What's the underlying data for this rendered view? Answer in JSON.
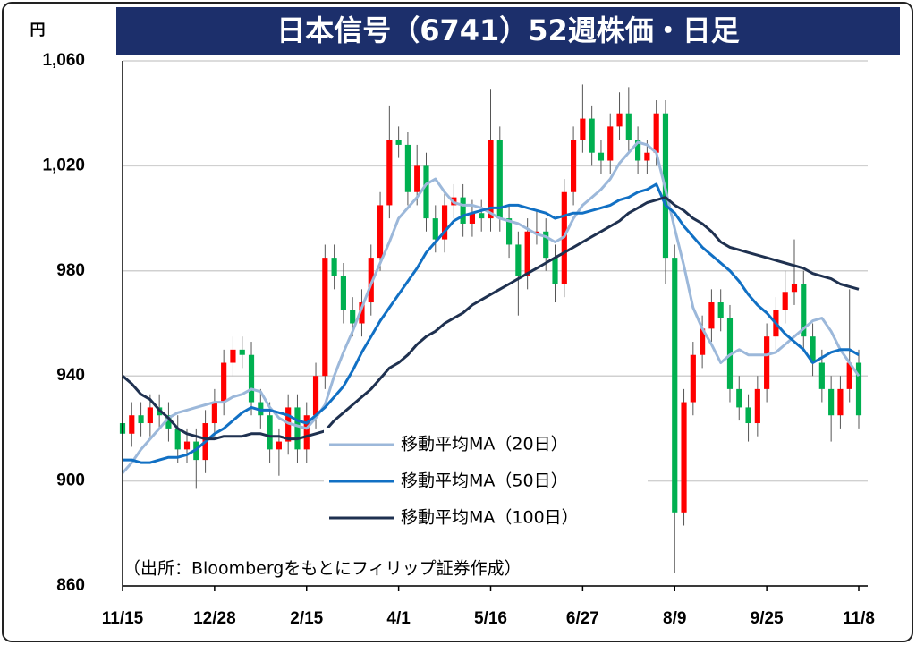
{
  "chart_data": {
    "type": "candlestick",
    "title": "日本信号（6741）52週株価・日足",
    "y_unit": "円",
    "annotation": "（出所：Bloombergをもとにフィリップ証券作成）",
    "categories": [
      "11/15",
      null,
      null,
      null,
      null,
      null,
      null,
      null,
      null,
      null,
      "12/28",
      null,
      null,
      null,
      null,
      null,
      null,
      null,
      null,
      null,
      "2/15",
      null,
      null,
      null,
      null,
      null,
      null,
      null,
      null,
      null,
      "4/1",
      null,
      null,
      null,
      null,
      null,
      null,
      null,
      null,
      null,
      "5/16",
      null,
      null,
      null,
      null,
      null,
      null,
      null,
      null,
      null,
      "6/27",
      null,
      null,
      null,
      null,
      null,
      null,
      null,
      null,
      null,
      "8/9",
      null,
      null,
      null,
      null,
      null,
      null,
      null,
      null,
      null,
      "9/25",
      null,
      null,
      null,
      null,
      null,
      null,
      null,
      null,
      null,
      "11/8"
    ],
    "open": [
      922,
      918,
      925,
      922,
      928,
      925,
      920,
      912,
      915,
      908,
      922,
      930,
      945,
      950,
      948,
      930,
      925,
      912,
      915,
      928,
      912,
      925,
      940,
      985,
      978,
      965,
      960,
      968,
      985,
      1005,
      1030,
      1028,
      1010,
      1020,
      1000,
      992,
      1005,
      1008,
      998,
      1002,
      1000,
      1030,
      1000,
      990,
      978,
      995,
      995,
      985,
      975,
      1010,
      1030,
      1038,
      1025,
      1022,
      1035,
      1040,
      1030,
      1022,
      1025,
      1040,
      985,
      888,
      930,
      948,
      958,
      968,
      962,
      935,
      928,
      922,
      935,
      955,
      965,
      972,
      975,
      955,
      945,
      935,
      925,
      935,
      945
    ],
    "high": [
      927,
      930,
      930,
      933,
      933,
      930,
      925,
      920,
      920,
      927,
      935,
      950,
      955,
      955,
      953,
      935,
      930,
      920,
      933,
      933,
      930,
      945,
      990,
      990,
      983,
      970,
      973,
      990,
      1010,
      1043,
      1035,
      1033,
      1028,
      1025,
      1005,
      1010,
      1013,
      1013,
      1007,
      1007,
      1049,
      1035,
      1005,
      995,
      1000,
      1003,
      1000,
      990,
      1015,
      1035,
      1051,
      1043,
      1030,
      1040,
      1048,
      1050,
      1035,
      1030,
      1045,
      1045,
      990,
      935,
      953,
      963,
      973,
      973,
      967,
      940,
      933,
      940,
      960,
      970,
      980,
      992,
      980,
      960,
      950,
      940,
      940,
      973,
      950
    ],
    "low": [
      913,
      913,
      917,
      917,
      920,
      915,
      907,
      907,
      897,
      903,
      917,
      925,
      940,
      943,
      925,
      920,
      907,
      902,
      910,
      907,
      907,
      920,
      935,
      973,
      960,
      955,
      955,
      963,
      980,
      1000,
      1023,
      1005,
      1005,
      995,
      987,
      987,
      1000,
      993,
      993,
      995,
      995,
      995,
      985,
      963,
      973,
      990,
      980,
      968,
      970,
      1005,
      1025,
      1020,
      1017,
      1017,
      1030,
      1025,
      1017,
      1017,
      1020,
      975,
      865,
      883,
      925,
      943,
      953,
      957,
      930,
      923,
      915,
      917,
      930,
      950,
      960,
      967,
      950,
      940,
      930,
      915,
      920,
      930,
      920
    ],
    "close": [
      918,
      925,
      922,
      928,
      925,
      920,
      912,
      915,
      908,
      922,
      930,
      945,
      950,
      948,
      930,
      925,
      912,
      915,
      928,
      912,
      925,
      940,
      985,
      978,
      965,
      960,
      968,
      985,
      1005,
      1030,
      1028,
      1010,
      1020,
      1000,
      992,
      1005,
      1008,
      998,
      1002,
      1000,
      1030,
      1000,
      990,
      978,
      995,
      995,
      985,
      975,
      1010,
      1030,
      1038,
      1025,
      1022,
      1035,
      1040,
      1030,
      1022,
      1025,
      1040,
      985,
      888,
      930,
      948,
      958,
      968,
      962,
      935,
      928,
      922,
      935,
      955,
      965,
      972,
      975,
      955,
      945,
      935,
      925,
      935,
      945,
      925
    ],
    "series": [
      {
        "name": "移動平均MA（20日）",
        "color": "#9cb8da",
        "values": [
          903,
          907,
          912,
          916,
          920,
          924,
          926,
          927,
          928,
          929,
          930,
          930,
          932,
          933,
          935,
          934,
          928,
          924,
          922,
          921,
          920,
          924,
          929,
          940,
          949,
          957,
          966,
          975,
          983,
          991,
          1000,
          1004,
          1008,
          1013,
          1015,
          1010,
          1006,
          1005,
          1005,
          1004,
          1002,
          1000,
          999,
          998,
          996,
          994,
          993,
          991,
          993,
          1000,
          1005,
          1008,
          1011,
          1015,
          1021,
          1025,
          1029,
          1028,
          1025,
          1011,
          996,
          982,
          966,
          958,
          952,
          945,
          948,
          950,
          948,
          948,
          948,
          949,
          952,
          955,
          958,
          961,
          962,
          957,
          950,
          945,
          940
        ]
      },
      {
        "name": "移動平均MA（50日）",
        "color": "#1170c4",
        "values": [
          908,
          908,
          907,
          907,
          908,
          909,
          909,
          910,
          912,
          915,
          918,
          920,
          923,
          926,
          928,
          927,
          927,
          926,
          925,
          923,
          922,
          925,
          928,
          932,
          936,
          942,
          949,
          955,
          961,
          966,
          971,
          976,
          981,
          987,
          991,
          995,
          999,
          1001,
          1002,
          1003,
          1004,
          1004,
          1005,
          1005,
          1004,
          1003,
          1002,
          1000,
          1001,
          1002,
          1002,
          1003,
          1004,
          1005,
          1007,
          1008,
          1010,
          1011,
          1013,
          1005,
          1002,
          997,
          993,
          989,
          986,
          983,
          980,
          976,
          971,
          967,
          964,
          960,
          956,
          953,
          950,
          945,
          947,
          949,
          950,
          950,
          948
        ]
      },
      {
        "name": "移動平均MA（100日）",
        "color": "#1f3150",
        "values": [
          940,
          937,
          933,
          931,
          927,
          924,
          920,
          918,
          917,
          916,
          916,
          917,
          917,
          917,
          918,
          918,
          917,
          917,
          916,
          916,
          917,
          918,
          919,
          923,
          926,
          929,
          932,
          935,
          939,
          943,
          945,
          948,
          952,
          955,
          957,
          960,
          962,
          964,
          967,
          969,
          971,
          973,
          975,
          977,
          979,
          981,
          983,
          985,
          987,
          989,
          991,
          993,
          995,
          997,
          999,
          1002,
          1004,
          1006,
          1007,
          1008,
          1005,
          1003,
          1000,
          998,
          995,
          991,
          989,
          988,
          987,
          986,
          985,
          984,
          983,
          982,
          981,
          979,
          978,
          977,
          975,
          974,
          973
        ]
      }
    ],
    "up_color": "#ff0000",
    "down_color": "#00b050",
    "ylim": [
      860,
      1060
    ],
    "yticks": [
      860,
      900,
      940,
      980,
      {
        "value": 1020,
        "label": "1,020"
      },
      {
        "value": 1060,
        "label": "1,060"
      }
    ],
    "grid": true
  }
}
